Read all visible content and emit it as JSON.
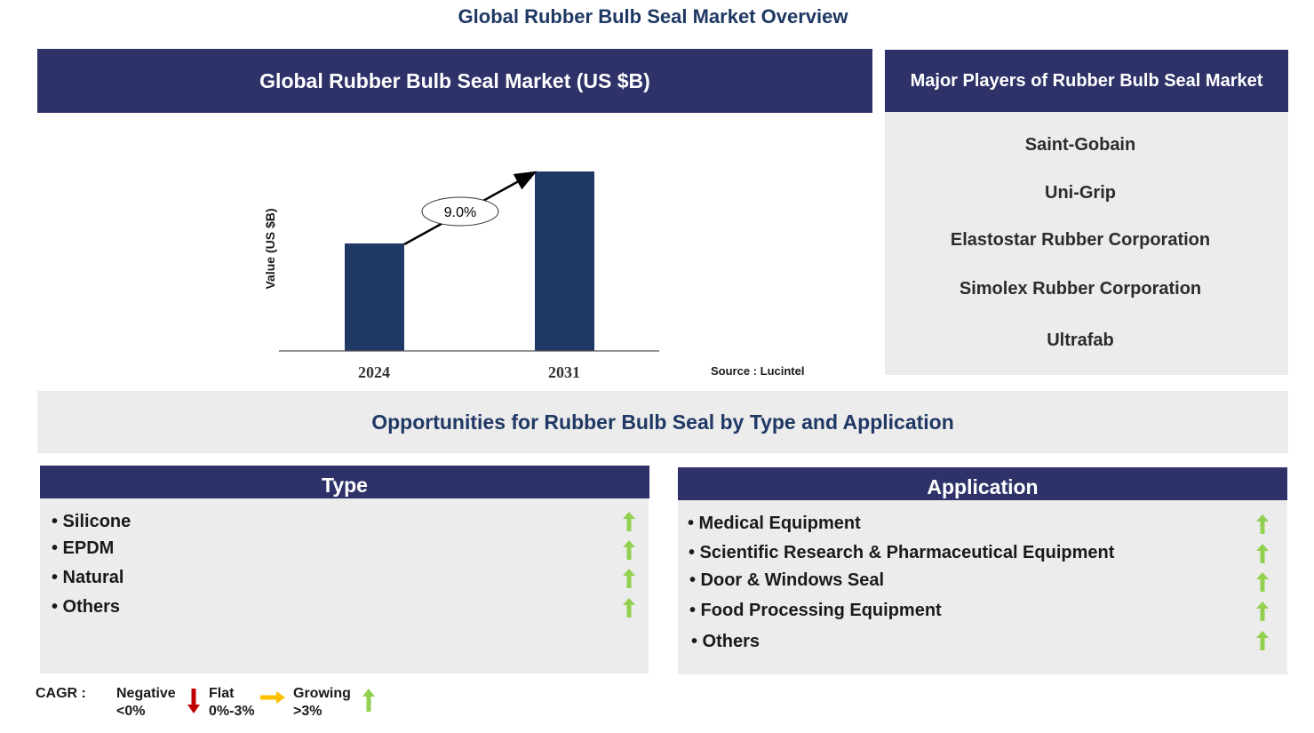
{
  "page_title": "Global Rubber Bulb Seal Market Overview",
  "chart_data": {
    "type": "bar",
    "title": "Global Rubber Bulb Seal Market (US $B)",
    "categories": [
      "2024",
      "2031"
    ],
    "ylabel": "Value (US $B)",
    "xlabel": "",
    "cagr_label": "9.0%",
    "source": "Source : Lucintel",
    "colors": {
      "bar": "#1f3864"
    }
  },
  "players": {
    "title": "Major Players of Rubber Bulb Seal Market",
    "items": [
      "Saint-Gobain",
      "Uni-Grip",
      "Elastostar Rubber Corporation",
      "Simolex Rubber Corporation",
      "Ultrafab"
    ]
  },
  "opportunities": {
    "title": "Opportunities for Rubber Bulb Seal by Type and Application",
    "type": {
      "header": "Type",
      "items": [
        {
          "label": "• Silicone",
          "trend": "growing"
        },
        {
          "label": "• EPDM",
          "trend": "growing"
        },
        {
          "label": "• Natural",
          "trend": "growing"
        },
        {
          "label": "• Others",
          "trend": "growing"
        }
      ]
    },
    "application": {
      "header": "Application",
      "items": [
        {
          "label": "• Medical Equipment",
          "trend": "growing"
        },
        {
          "label": "• Scientific Research & Pharmaceutical Equipment",
          "trend": "growing"
        },
        {
          "label": "• Door & Windows Seal",
          "trend": "growing"
        },
        {
          "label": "• Food Processing Equipment",
          "trend": "growing"
        },
        {
          "label": "• Others",
          "trend": "growing"
        }
      ]
    }
  },
  "legend": {
    "label": "CAGR :",
    "negative": {
      "name": "Negative",
      "range": "<0%",
      "color": "#c00000",
      "icon": "down-arrow-icon"
    },
    "flat": {
      "name": "Flat",
      "range": "0%-3%",
      "color": "#ffc000",
      "icon": "right-arrow-icon"
    },
    "growing": {
      "name": "Growing",
      "range": ">3%",
      "color": "#92d050",
      "icon": "up-arrow-icon"
    }
  }
}
